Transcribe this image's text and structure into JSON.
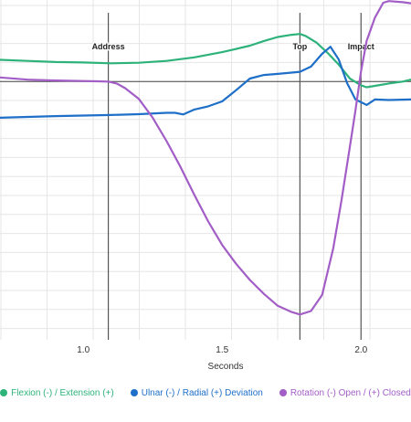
{
  "chart_data": {
    "type": "line",
    "xlabel": "Seconds",
    "xlim": [
      0.7,
      2.18
    ],
    "ylim": [
      -95,
      30
    ],
    "xticks": [
      1.0,
      1.5,
      2.0
    ],
    "xtick_labels": [
      "1.0",
      "1.5",
      "2.0"
    ],
    "grid": true,
    "legend_position": "bottom",
    "annotations": [
      {
        "label": "Address",
        "x": 1.09
      },
      {
        "label": "Top",
        "x": 1.78
      },
      {
        "label": "Impact",
        "x": 2.0
      }
    ],
    "series": [
      {
        "name": "Flexion (-) / Extension (+)",
        "color": "#2db37a",
        "points": [
          [
            0.7,
            8
          ],
          [
            0.8,
            7.6
          ],
          [
            0.9,
            7.2
          ],
          [
            1.0,
            7
          ],
          [
            1.1,
            6.7
          ],
          [
            1.2,
            6.9
          ],
          [
            1.3,
            7.6
          ],
          [
            1.4,
            8.9
          ],
          [
            1.5,
            10.8
          ],
          [
            1.6,
            13.2
          ],
          [
            1.65,
            14.9
          ],
          [
            1.7,
            16.4
          ],
          [
            1.75,
            17.2
          ],
          [
            1.78,
            17.5
          ],
          [
            1.8,
            16.8
          ],
          [
            1.84,
            14.3
          ],
          [
            1.88,
            10.5
          ],
          [
            1.92,
            6.2
          ],
          [
            1.96,
            1.1
          ],
          [
            2.0,
            -1.4
          ],
          [
            2.02,
            -2.1
          ],
          [
            2.05,
            -1.6
          ],
          [
            2.1,
            -0.7
          ],
          [
            2.15,
            0
          ],
          [
            2.18,
            0.7
          ]
        ]
      },
      {
        "name": "Ulnar (-) / Radial (+) Deviation",
        "color": "#1e6fc8",
        "points": [
          [
            0.7,
            -13.3
          ],
          [
            0.8,
            -13
          ],
          [
            0.9,
            -12.7
          ],
          [
            1.0,
            -12.5
          ],
          [
            1.1,
            -12.3
          ],
          [
            1.2,
            -12
          ],
          [
            1.3,
            -11.5
          ],
          [
            1.33,
            -11.5
          ],
          [
            1.36,
            -12.1
          ],
          [
            1.4,
            -10.3
          ],
          [
            1.45,
            -9.1
          ],
          [
            1.5,
            -7.3
          ],
          [
            1.55,
            -3.2
          ],
          [
            1.6,
            1.1
          ],
          [
            1.65,
            2.4
          ],
          [
            1.7,
            2.8
          ],
          [
            1.75,
            3.3
          ],
          [
            1.78,
            3.6
          ],
          [
            1.82,
            5.5
          ],
          [
            1.86,
            10.2
          ],
          [
            1.89,
            12.8
          ],
          [
            1.92,
            8.1
          ],
          [
            1.95,
            -0.6
          ],
          [
            1.98,
            -6.6
          ],
          [
            2.02,
            -8.6
          ],
          [
            2.05,
            -6.6
          ],
          [
            2.1,
            -6.8
          ],
          [
            2.18,
            -6.6
          ]
        ]
      },
      {
        "name": "Rotation (-) Open / (+) Closed",
        "color": "#a25ec6",
        "points": [
          [
            0.7,
            1.5
          ],
          [
            0.8,
            0.7
          ],
          [
            0.9,
            0.4
          ],
          [
            1.0,
            0.2
          ],
          [
            1.05,
            0.1
          ],
          [
            1.09,
            0
          ],
          [
            1.12,
            -0.7
          ],
          [
            1.15,
            -2.4
          ],
          [
            1.2,
            -6.4
          ],
          [
            1.25,
            -13.3
          ],
          [
            1.3,
            -21.9
          ],
          [
            1.35,
            -31.4
          ],
          [
            1.4,
            -41.7
          ],
          [
            1.45,
            -51.5
          ],
          [
            1.5,
            -60.1
          ],
          [
            1.55,
            -67
          ],
          [
            1.6,
            -73
          ],
          [
            1.65,
            -78.1
          ],
          [
            1.7,
            -82.5
          ],
          [
            1.75,
            -84.8
          ],
          [
            1.78,
            -85.7
          ],
          [
            1.82,
            -84.4
          ],
          [
            1.86,
            -78.5
          ],
          [
            1.9,
            -61.3
          ],
          [
            1.93,
            -43.5
          ],
          [
            1.96,
            -23.9
          ],
          [
            1.98,
            -10.6
          ],
          [
            2.0,
            3.8
          ],
          [
            2.02,
            14.9
          ],
          [
            2.05,
            23.5
          ],
          [
            2.08,
            29
          ],
          [
            2.1,
            29.6
          ],
          [
            2.15,
            29.2
          ],
          [
            2.18,
            28.8
          ]
        ]
      }
    ]
  }
}
